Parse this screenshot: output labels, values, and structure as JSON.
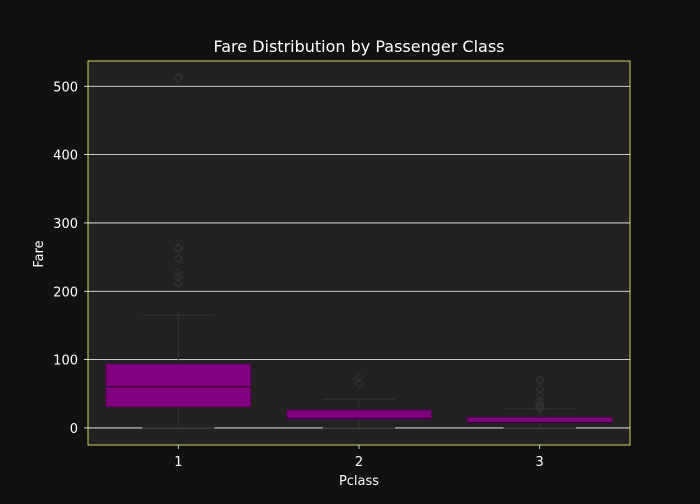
{
  "chart_data": {
    "type": "box",
    "title": "Fare Distribution by Passenger Class",
    "xlabel": "Pclass",
    "ylabel": "Fare",
    "categories": [
      "1",
      "2",
      "3"
    ],
    "ylim": [
      -25,
      537
    ],
    "yticks": [
      0,
      100,
      200,
      300,
      400,
      500
    ],
    "grid": true,
    "colors": {
      "figure_bg": "#111111",
      "axes_bg": "#222222",
      "box_fill": "#800080",
      "box_edge": "#5a005a",
      "median": "#3a003a",
      "whisker": "#333333",
      "outlier": "#333333",
      "grid": "#ffffff",
      "spine": "#ffff66",
      "text": "#ffffff"
    },
    "boxes": [
      {
        "category": "1",
        "min": 0,
        "q1": 30.9,
        "median": 60.3,
        "q3": 93.5,
        "max": 164.9,
        "outliers": [
          211.3,
          211.5,
          221.8,
          227.5,
          247.5,
          262.4,
          263.0,
          512.3
        ]
      },
      {
        "category": "2",
        "min": 0,
        "q1": 13.0,
        "median": 14.25,
        "q3": 26.0,
        "max": 42.0,
        "outliers": [
          65.0,
          73.5
        ]
      },
      {
        "category": "3",
        "min": 0,
        "q1": 7.75,
        "median": 8.05,
        "q3": 15.5,
        "max": 27.9,
        "outliers": [
          29.1,
          31.3,
          31.4,
          34.4,
          39.7,
          46.9,
          56.5,
          69.55
        ]
      }
    ]
  }
}
